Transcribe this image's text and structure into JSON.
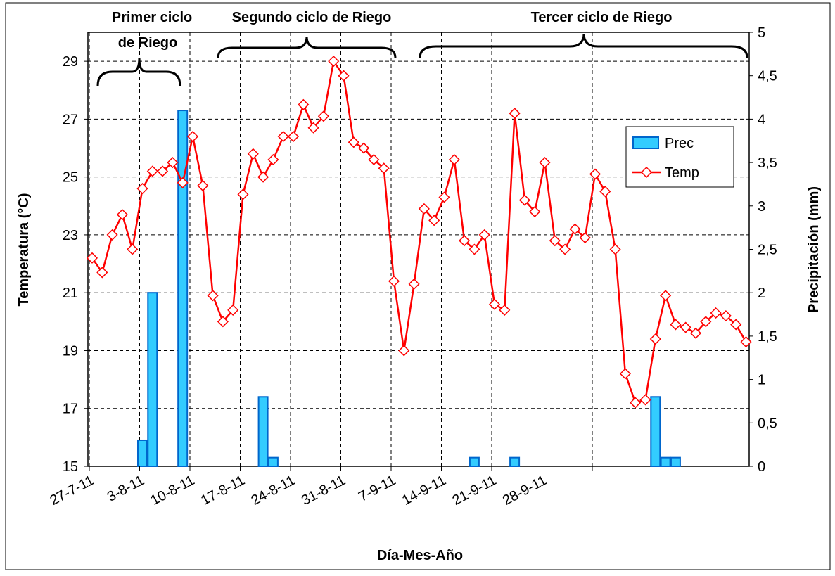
{
  "chart_data": {
    "type": "bar_line",
    "x_label": "Día-Mes-Año",
    "y_label": "Temperatura (°C)",
    "y2_label": "Precipitación (mm)",
    "annotations": [
      "Primer ciclo",
      "de Riego",
      "Segundo ciclo de Riego",
      "Tercer ciclo  de Riego"
    ],
    "categories": [
      null,
      null,
      null,
      null,
      null,
      null,
      null,
      null,
      null,
      null,
      null,
      null,
      null,
      null,
      null,
      null,
      null,
      null,
      null,
      null,
      null,
      null,
      null,
      null,
      null,
      null,
      null,
      null,
      null,
      null,
      null,
      null,
      null,
      null,
      null,
      null,
      null,
      null,
      null,
      null,
      null,
      null,
      null,
      null,
      null,
      null,
      null,
      null,
      null,
      null,
      null,
      null,
      null,
      null,
      null,
      null,
      null,
      null,
      null,
      null,
      null,
      null,
      null,
      null,
      null,
      null
    ],
    "xticks": [
      "27-7-11",
      "3-8-11",
      "10-8-11",
      "17-8-11",
      "24-8-11",
      "31-8-11",
      "7-9-11",
      "14-9-11",
      "21-9-11",
      "28-9-11",
      null
    ],
    "ylim": [
      15,
      30
    ],
    "yticks": [
      15,
      17,
      19,
      21,
      23,
      25,
      27,
      29
    ],
    "y2lim": [
      0,
      5
    ],
    "y2ticks": [
      0,
      {
        "value": 0.5,
        "label": "0,5"
      },
      1,
      {
        "value": 1.5,
        "label": "1,5"
      },
      2,
      {
        "value": 2.5,
        "label": "2,5"
      },
      3,
      {
        "value": 3.5,
        "label": "3,5"
      },
      4,
      {
        "value": 4.5,
        "label": "4,5"
      },
      5
    ],
    "grid": true,
    "legend": "right",
    "series": [
      {
        "name": "Prec",
        "type": "bar",
        "axis": "y2",
        "color": "#33ccff",
        "values": [
          null,
          null,
          null,
          null,
          null,
          0.3,
          2,
          null,
          null,
          4.1,
          null,
          null,
          null,
          null,
          null,
          null,
          null,
          0.8,
          0.1,
          null,
          null,
          null,
          null,
          null,
          null,
          null,
          null,
          null,
          null,
          null,
          null,
          null,
          null,
          null,
          null,
          null,
          null,
          null,
          0.1,
          null,
          null,
          null,
          0.1,
          null,
          null,
          null,
          null,
          null,
          null,
          null,
          null,
          null,
          null,
          null,
          null,
          null,
          0.8,
          0.1,
          0.1,
          null,
          null,
          null,
          null,
          null,
          null,
          null
        ]
      },
      {
        "name": "Temp",
        "type": "line",
        "axis": "y",
        "color": "#ff0000",
        "values": [
          22.2,
          21.7,
          23,
          23.7,
          22.5,
          24.6,
          25.2,
          25.2,
          25.5,
          24.8,
          26.4,
          24.7,
          20.9,
          20,
          20.4,
          24.4,
          25.8,
          25,
          25.6,
          26.4,
          26.4,
          27.5,
          26.7,
          27.1,
          29,
          28.5,
          26.2,
          26,
          25.6,
          25.3,
          21.4,
          19,
          21.3,
          23.9,
          23.5,
          24.3,
          25.6,
          22.8,
          22.5,
          23,
          20.6,
          20.4,
          27.2,
          24.2,
          23.8,
          25.5,
          22.8,
          22.5,
          23.2,
          22.9,
          25.1,
          24.5,
          22.5,
          18.2,
          17.2,
          17.3,
          19.4,
          20.9,
          19.9,
          19.8,
          19.6,
          20,
          20.3,
          20.2,
          19.9,
          19.3
        ]
      }
    ]
  }
}
